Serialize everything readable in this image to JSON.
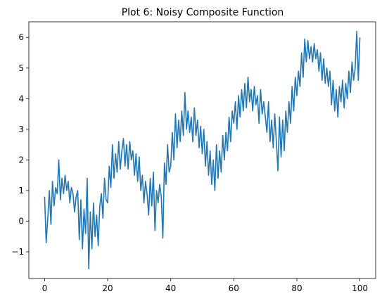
{
  "chart_data": {
    "type": "line",
    "title": "Plot 6: Noisy Composite Function",
    "color": "#1f77b4",
    "x": [
      0,
      0.5,
      1,
      1.5,
      2,
      2.5,
      3,
      3.5,
      4,
      4.5,
      5,
      5.5,
      6,
      6.5,
      7,
      7.5,
      8,
      8.5,
      9,
      9.5,
      10,
      10.5,
      11,
      11.5,
      12,
      12.5,
      13,
      13.5,
      14,
      14.5,
      15,
      15.5,
      16,
      16.5,
      17,
      17.5,
      18,
      18.5,
      19,
      19.5,
      20,
      20.5,
      21,
      21.5,
      22,
      22.5,
      23,
      23.5,
      24,
      24.5,
      25,
      25.5,
      26,
      26.5,
      27,
      27.5,
      28,
      28.5,
      29,
      29.5,
      30,
      30.5,
      31,
      31.5,
      32,
      32.5,
      33,
      33.5,
      34,
      34.5,
      35,
      35.5,
      36,
      36.5,
      37,
      37.5,
      38,
      38.5,
      39,
      39.5,
      40,
      40.5,
      41,
      41.5,
      42,
      42.5,
      43,
      43.5,
      44,
      44.5,
      45,
      45.5,
      46,
      46.5,
      47,
      47.5,
      48,
      48.5,
      49,
      49.5,
      50,
      50.5,
      51,
      51.5,
      52,
      52.5,
      53,
      53.5,
      54,
      54.5,
      55,
      55.5,
      56,
      56.5,
      57,
      57.5,
      58,
      58.5,
      59,
      59.5,
      60,
      60.5,
      61,
      61.5,
      62,
      62.5,
      63,
      63.5,
      64,
      64.5,
      65,
      65.5,
      66,
      66.5,
      67,
      67.5,
      68,
      68.5,
      69,
      69.5,
      70,
      70.5,
      71,
      71.5,
      72,
      72.5,
      73,
      73.5,
      74,
      74.5,
      75,
      75.5,
      76,
      76.5,
      77,
      77.5,
      78,
      78.5,
      79,
      79.5,
      80,
      80.5,
      81,
      81.5,
      82,
      82.5,
      83,
      83.5,
      84,
      84.5,
      85,
      85.5,
      86,
      86.5,
      87,
      87.5,
      88,
      88.5,
      89,
      89.5,
      90,
      90.5,
      91,
      91.5,
      92,
      92.5,
      93,
      93.5,
      94,
      94.5,
      95,
      95.5,
      96,
      96.5,
      97,
      97.5,
      98,
      98.5,
      99,
      99.5,
      100
    ],
    "values": [
      0.8,
      -0.7,
      0.1,
      1.0,
      -0.1,
      1.3,
      0.5,
      1.1,
      0.9,
      2.0,
      0.7,
      1.4,
      0.9,
      1.5,
      1.0,
      1.3,
      0.6,
      1.1,
      0.9,
      0.3,
      0.8,
      1.0,
      -0.6,
      0.7,
      -0.9,
      0.4,
      -0.4,
      1.4,
      -1.55,
      0.3,
      -0.9,
      0.6,
      -0.5,
      0.2,
      -0.8,
      0.5,
      0.9,
      0.1,
      1.4,
      0.7,
      0.6,
      1.8,
      1.1,
      2.5,
      1.4,
      2.2,
      1.6,
      2.6,
      1.7,
      2.3,
      2.7,
      1.8,
      2.5,
      1.7,
      2.6,
      2.0,
      2.3,
      1.5,
      2.2,
      1.3,
      2.1,
      1.0,
      1.5,
      0.6,
      1.3,
      0.9,
      0.2,
      1.4,
      0.5,
      1.6,
      -0.3,
      1.0,
      0.6,
      1.2,
      0.8,
      -0.55,
      1.9,
      1.2,
      2.5,
      1.6,
      1.8,
      2.9,
      2.0,
      3.5,
      2.4,
      3.3,
      2.6,
      3.6,
      2.8,
      4.2,
      3.0,
      3.6,
      2.9,
      3.4,
      2.6,
      3.7,
      2.8,
      3.3,
      2.4,
      3.1,
      2.2,
      3.0,
      1.8,
      2.6,
      1.5,
      2.3,
      1.2,
      2.0,
      1.0,
      2.5,
      1.4,
      2.3,
      1.6,
      2.8,
      2.0,
      2.9,
      2.3,
      3.4,
      2.6,
      3.6,
      3.2,
      3.9,
      3.0,
      4.1,
      3.4,
      4.3,
      3.6,
      4.5,
      3.7,
      4.7,
      3.9,
      4.3,
      3.6,
      4.4,
      3.8,
      4.1,
      3.2,
      4.3,
      3.5,
      3.9,
      3.4,
      2.9,
      3.9,
      2.6,
      3.3,
      2.4,
      3.5,
      2.6,
      1.65,
      3.4,
      2.1,
      3.3,
      2.3,
      3.6,
      2.9,
      3.9,
      3.2,
      4.4,
      3.6,
      4.7,
      4.1,
      4.9,
      4.4,
      5.5,
      4.7,
      5.95,
      5.2,
      5.9,
      5.3,
      5.7,
      5.2,
      5.8,
      5.3,
      5.6,
      4.9,
      5.5,
      4.6,
      5.3,
      4.5,
      5.0,
      4.4,
      4.9,
      3.8,
      4.6,
      3.6,
      4.3,
      3.4,
      4.4,
      3.9,
      4.6,
      3.7,
      4.5,
      4.0,
      4.9,
      4.2,
      5.2,
      4.6,
      5.0,
      6.2,
      4.6,
      6.0
    ],
    "xlim": [
      -5,
      105
    ],
    "xticks": [
      0,
      20,
      40,
      60,
      80,
      100
    ],
    "ylim": [
      -1.87,
      6.51
    ],
    "yticks": [
      {
        "value": -1,
        "label": "−1"
      },
      0,
      1,
      2,
      3,
      4,
      5,
      6
    ]
  }
}
